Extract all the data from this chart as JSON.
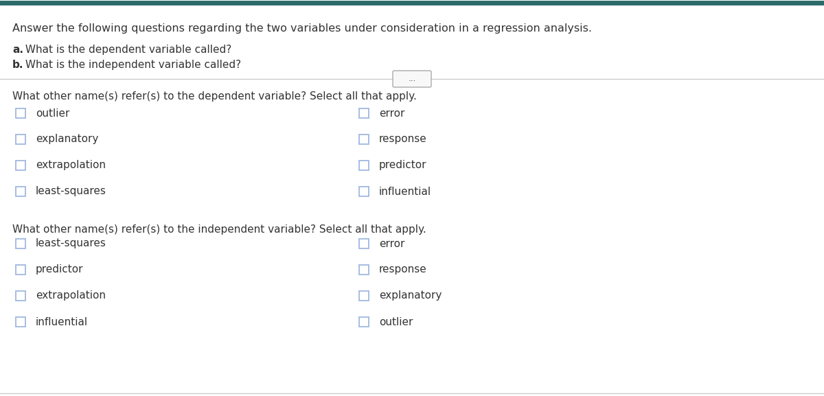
{
  "bg_color": "#ffffff",
  "border_color": "#2d6b6b",
  "header_text": "Answer the following questions regarding the two variables under consideration in a regression analysis.",
  "question_a_bold": "a.",
  "question_a_rest": " What is the dependent variable called?",
  "question_b_bold": "b.",
  "question_b_rest": " What is the independent variable called?",
  "divider_button_text": "...",
  "section1_question": "What other name(s) refer(s) to the dependent variable? Select all that apply.",
  "section1_left": [
    "outlier",
    "explanatory",
    "extrapolation",
    "least-squares"
  ],
  "section1_right": [
    "error",
    "response",
    "predictor",
    "influential"
  ],
  "section2_question": "What other name(s) refer(s) to the independent variable? Select all that apply.",
  "section2_left": [
    "least-squares",
    "predictor",
    "extrapolation",
    "influential"
  ],
  "section2_right": [
    "error",
    "response",
    "explanatory",
    "outlier"
  ],
  "checkbox_color": "#a0b8e0",
  "text_color": "#333333",
  "font_size_header": 11.5,
  "font_size_questions": 11.0,
  "font_size_items": 11.0,
  "top_border_color": "#2d6b6b",
  "divider_color": "#cccccc",
  "btn_color": "#e8e8e8",
  "btn_border_color": "#aaaaaa"
}
